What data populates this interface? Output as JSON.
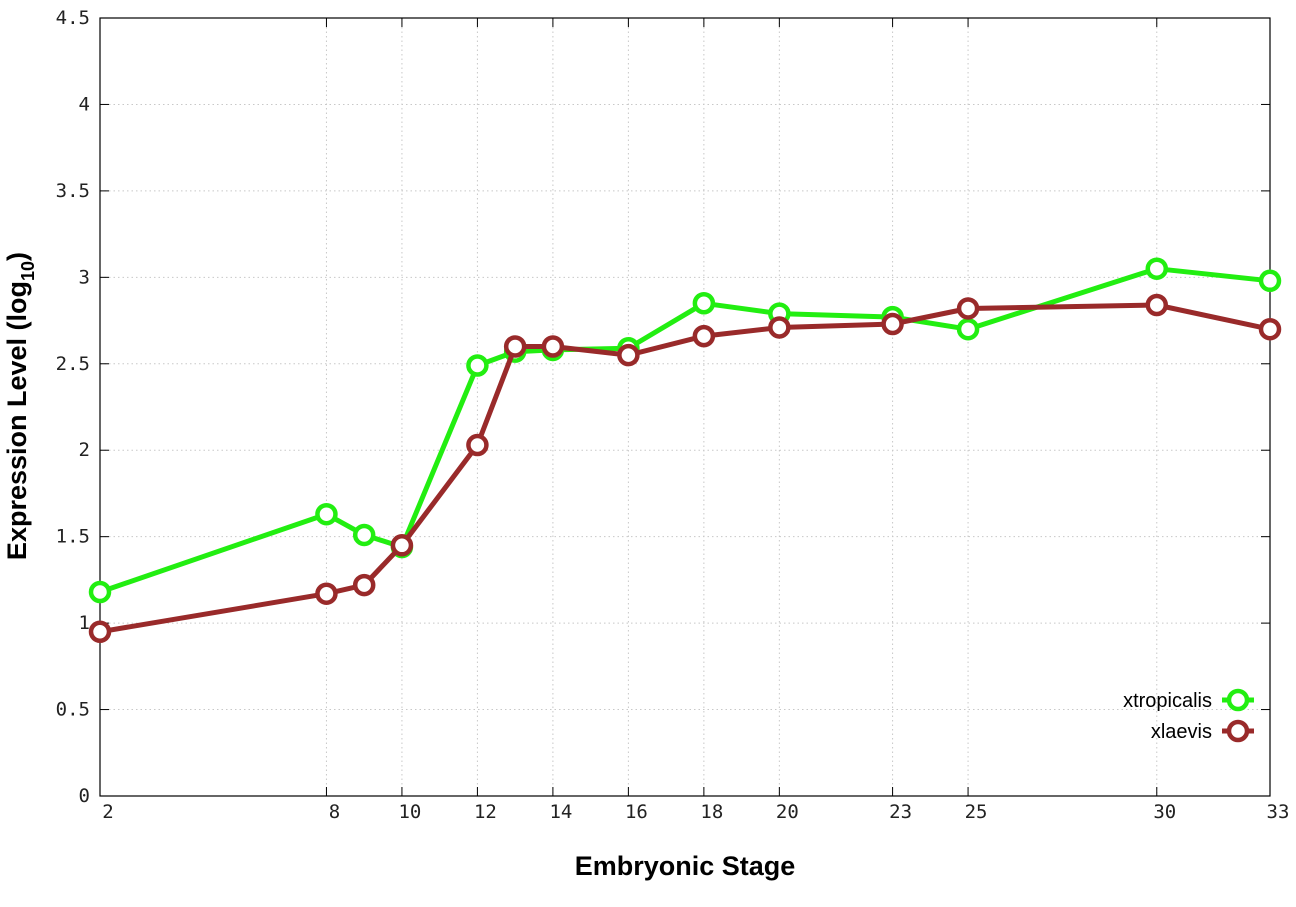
{
  "chart_data": {
    "type": "line",
    "xlabel": "Embryonic Stage",
    "ylabel": "Expression Level (log",
    "ylabel_subscript": "10",
    "ylabel_suffix": ")",
    "x": [
      2,
      8,
      9,
      10,
      12,
      13,
      14,
      16,
      18,
      20,
      23,
      25,
      30,
      33
    ],
    "x_ticks": [
      2,
      8,
      10,
      12,
      14,
      16,
      18,
      20,
      23,
      25,
      30,
      33
    ],
    "xlim": [
      2,
      33
    ],
    "ylim": [
      0,
      4.5
    ],
    "y_ticks": [
      0,
      0.5,
      1,
      1.5,
      2,
      2.5,
      3,
      3.5,
      4,
      4.5
    ],
    "grid": true,
    "legend_position": "bottom-right",
    "series": [
      {
        "name": "xtropicalis",
        "color": "#22ee11",
        "values": [
          1.18,
          1.63,
          1.51,
          1.44,
          2.49,
          2.57,
          2.58,
          2.59,
          2.85,
          2.79,
          2.77,
          2.7,
          3.05,
          2.98
        ]
      },
      {
        "name": "xlaevis",
        "color": "#992a2a",
        "values": [
          0.95,
          1.17,
          1.22,
          1.45,
          2.03,
          2.6,
          2.6,
          2.55,
          2.66,
          2.71,
          2.73,
          2.82,
          2.84,
          2.7
        ]
      }
    ]
  }
}
